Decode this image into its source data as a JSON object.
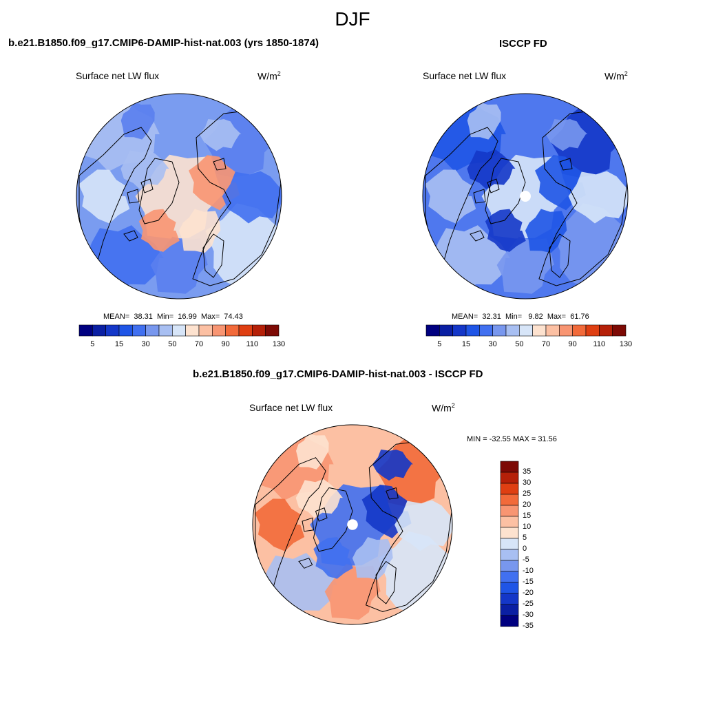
{
  "figure": {
    "season": "DJF"
  },
  "panels": [
    {
      "title": "b.e21.B1850.f09_g17.CMIP6-DAMIP-hist-nat.003 (yrs 1850-1874)",
      "left_label": "Surface net LW flux",
      "right_label_base": "W/m",
      "right_label_sup": "2",
      "mean_label": "MEAN=",
      "mean": "38.31",
      "min_label": "Min=",
      "min": "16.99",
      "max_label": "Max=",
      "max": "74.43"
    },
    {
      "title": "ISCCP FD",
      "left_label": "Surface net LW flux",
      "right_label_base": "W/m",
      "right_label_sup": "2",
      "mean_label": "MEAN=",
      "mean": "32.31",
      "min_label": "Min=",
      "min": "9.82",
      "max_label": "Max=",
      "max": "61.76"
    },
    {
      "title": "b.e21.B1850.f09_g17.CMIP6-DAMIP-hist-nat.003 - ISCCP FD",
      "left_label": "Surface net LW flux",
      "right_label_base": "W/m",
      "right_label_sup": "2",
      "minmax_text": "MIN = -32.55 MAX =  31.56"
    }
  ],
  "colorbar_abs": {
    "colors": [
      "#000080",
      "#0a1fa3",
      "#1437c8",
      "#1f55e6",
      "#4170f0",
      "#7897ee",
      "#a8bff2",
      "#d7e5f8",
      "#fde2cf",
      "#fcc0a3",
      "#f89572",
      "#f26a3a",
      "#df3f12",
      "#b52008",
      "#7d0a05"
    ],
    "tick_labels": [
      "5",
      "15",
      "30",
      "50",
      "70",
      "90",
      "110",
      "130"
    ]
  },
  "colorbar_diff": {
    "colors": [
      "#000080",
      "#0a1fa3",
      "#1437c8",
      "#1f55e6",
      "#4170f0",
      "#7897ee",
      "#a8bff2",
      "#d7e5f8",
      "#fde2cf",
      "#fcc0a3",
      "#f89572",
      "#f26a3a",
      "#df3f12",
      "#b52008",
      "#7d0a05"
    ],
    "tick_labels": [
      "35",
      "30",
      "25",
      "20",
      "15",
      "10",
      "5",
      "0",
      "-5",
      "-10",
      "-15",
      "-20",
      "-25",
      "-30",
      "-35"
    ]
  },
  "map_colors": {
    "model_base": "#7a9cf0",
    "model_regions": [
      "#a8bff2",
      "#5a80ee",
      "#d7e5f8",
      "#4170f0",
      "#fde2cf",
      "#f89572"
    ],
    "obs_base": "#4f78ee",
    "obs_regions": [
      "#1f55e6",
      "#1437c8",
      "#7897ee",
      "#a8bff2",
      "#d7e5f8"
    ],
    "diff_base": "#fcc0a3",
    "diff_regions": [
      "#f89572",
      "#f26a3a",
      "#d7e5f8",
      "#a8bff2",
      "#4170f0",
      "#1437c8",
      "#fde2cf"
    ]
  }
}
